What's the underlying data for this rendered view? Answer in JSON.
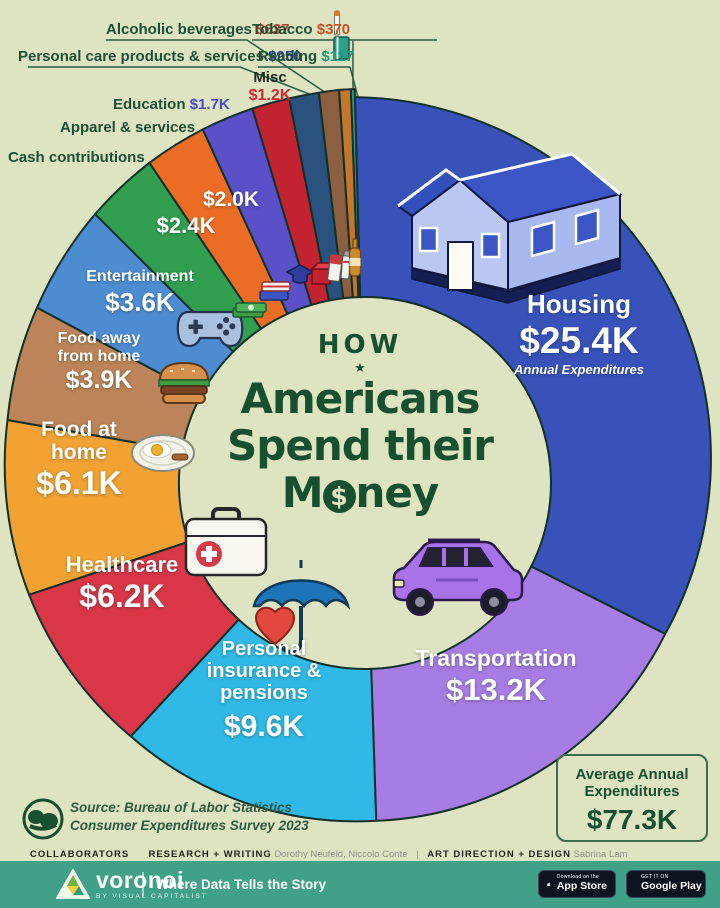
{
  "title": {
    "line1": "HOW",
    "star": "★",
    "line2": "Americans",
    "line3": "Spend their",
    "line4_pre": "M",
    "dollar": "$",
    "line4_post": "ney"
  },
  "chart_data": {
    "type": "pie",
    "title": "How Americans Spend their Money",
    "unit": "USD, annual expenditures per household, 2023",
    "legend_position": "radial labels",
    "total_value_k": 77.3,
    "segments": [
      {
        "label": "Housing",
        "value": 25.4,
        "value_display": "$25.4K",
        "note": "Annual Expenditures",
        "color": "#3952ba",
        "value_color": "#ffffff"
      },
      {
        "label": "Transportation",
        "value": 13.2,
        "value_display": "$13.2K",
        "color": "#a77ce4",
        "value_color": "#ffffff"
      },
      {
        "label": "Personal insurance & pensions",
        "value": 9.6,
        "value_display": "$9.6K",
        "color": "#30b9e6",
        "value_color": "#ffffff"
      },
      {
        "label": "Healthcare",
        "value": 6.2,
        "value_display": "$6.2K",
        "color": "#d93748",
        "value_color": "#ffffff"
      },
      {
        "label": "Food at home",
        "value": 6.1,
        "value_display": "$6.1K",
        "color": "#f2a233",
        "value_color": "#ffffff"
      },
      {
        "label": "Food away from home",
        "value": 3.9,
        "value_display": "$3.9K",
        "color": "#bc8458",
        "value_color": "#ffffff"
      },
      {
        "label": "Entertainment",
        "value": 3.6,
        "value_display": "$3.6K",
        "color": "#4e8cd2",
        "value_color": "#ffffff"
      },
      {
        "label": "Cash contributions",
        "value": 2.4,
        "value_display": "$2.4K",
        "color": "#319e50",
        "value_color": "#ffffff"
      },
      {
        "label": "Apparel & services",
        "value": 2.0,
        "value_display": "$2.0K",
        "color": "#eb6d25",
        "value_color": "#ffffff"
      },
      {
        "label": "Education",
        "value": 1.7,
        "value_display": "$1.7K",
        "color": "#5a50c8",
        "value_color": "#5048c8"
      },
      {
        "label": "Misc",
        "value": 1.2,
        "value_display": "$1.2K",
        "color": "#c32231",
        "value_color": "#d42535"
      },
      {
        "label": "Personal care products & services",
        "value": 0.95,
        "value_display": "$950",
        "color": "#2a527e",
        "value_color": "#23418f"
      },
      {
        "label": "Alcoholic beverages",
        "value": 0.637,
        "value_display": "$637",
        "color": "#8c5f41",
        "value_color": "#b04030"
      },
      {
        "label": "Tobacco",
        "value": 0.37,
        "value_display": "$370",
        "color": "#c4762b",
        "value_color": "#c2551f"
      },
      {
        "label": "Reading",
        "value": 0.117,
        "value_display": "$117",
        "color": "#2f9e88",
        "value_color": "#1a9c82"
      }
    ]
  },
  "summary_box": {
    "line1": "Average Annual",
    "line2": "Expenditures",
    "value": "$77.3K"
  },
  "source": {
    "line1": "Source: Bureau of Labor Statistics",
    "line2": "Consumer Expenditures Survey 2023"
  },
  "collaborators": {
    "heading": "COLLABORATORS",
    "research_label": "RESEARCH + WRITING",
    "research_names": "Dorothy Neufeld, Niccolo Conte",
    "separator": "|",
    "design_label": "ART DIRECTION + DESIGN",
    "design_name": "Sabrina Lam"
  },
  "footer": {
    "brand": "voronoi",
    "brand_sub": "BY VISUAL CAPITALIST",
    "tagline": "Where Data Tells the Story",
    "appstore_top": "Download on the",
    "appstore_bottom": "App Store",
    "gplay_top": "GET IT ON",
    "gplay_bottom": "Google Play"
  }
}
